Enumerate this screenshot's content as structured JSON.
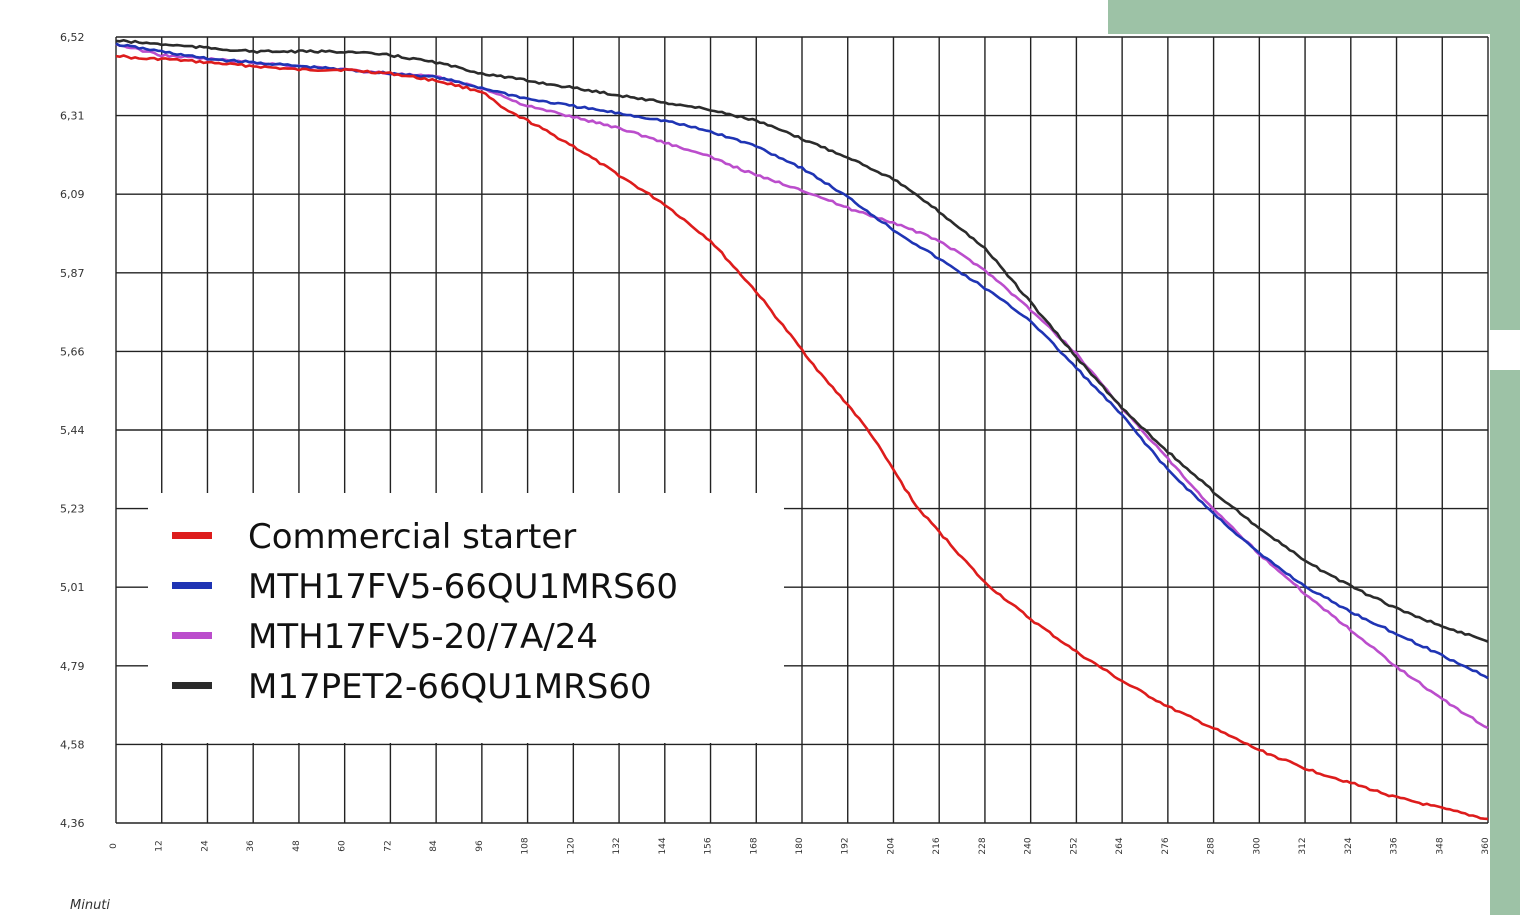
{
  "chart_data": {
    "type": "line",
    "xlabel": "Minuti",
    "ylabel": "",
    "x_ticks": [
      0,
      12,
      24,
      36,
      48,
      60,
      72,
      84,
      96,
      108,
      120,
      132,
      144,
      156,
      168,
      180,
      192,
      204,
      216,
      228,
      240,
      252,
      264,
      276,
      288,
      300,
      312,
      324,
      336,
      348,
      360
    ],
    "y_ticks": [
      "6,52",
      "6,31",
      "6,09",
      "5,87",
      "5,66",
      "5,44",
      "5,23",
      "5,01",
      "4,79",
      "4,58",
      "4,36"
    ],
    "xlim": [
      0,
      360
    ],
    "ylim": [
      4.36,
      6.52
    ],
    "grid": true,
    "legend_position": "lower-left",
    "series": [
      {
        "name": "Commercial starter",
        "color": "#dd1c1c",
        "x": [
          0,
          6,
          12,
          24,
          36,
          48,
          60,
          72,
          84,
          96,
          102,
          108,
          120,
          132,
          144,
          156,
          168,
          174,
          180,
          186,
          192,
          198,
          204,
          210,
          216,
          228,
          240,
          252,
          264,
          276,
          288,
          300,
          312,
          324,
          336,
          348,
          360
        ],
        "values": [
          6.47,
          6.46,
          6.46,
          6.45,
          6.44,
          6.43,
          6.43,
          6.42,
          6.4,
          6.37,
          6.32,
          6.29,
          6.22,
          6.14,
          6.06,
          5.96,
          5.82,
          5.74,
          5.66,
          5.58,
          5.51,
          5.43,
          5.33,
          5.23,
          5.16,
          5.02,
          4.92,
          4.83,
          4.75,
          4.68,
          4.62,
          4.56,
          4.51,
          4.47,
          4.43,
          4.4,
          4.37
        ]
      },
      {
        "name": "MTH17FV5-66QU1MRS60",
        "color": "#1f34b4",
        "x": [
          0,
          12,
          24,
          36,
          48,
          60,
          72,
          84,
          96,
          108,
          120,
          132,
          144,
          156,
          168,
          180,
          192,
          204,
          216,
          228,
          240,
          252,
          264,
          276,
          288,
          300,
          312,
          324,
          336,
          348,
          360
        ],
        "values": [
          6.5,
          6.48,
          6.46,
          6.45,
          6.44,
          6.43,
          6.42,
          6.41,
          6.38,
          6.35,
          6.33,
          6.31,
          6.29,
          6.26,
          6.22,
          6.16,
          6.08,
          5.99,
          5.91,
          5.83,
          5.74,
          5.61,
          5.48,
          5.33,
          5.21,
          5.1,
          5.01,
          4.94,
          4.88,
          4.82,
          4.76
        ]
      },
      {
        "name": "MTH17FV5-20/7A/24",
        "color": "#bb4dcc",
        "x": [
          0,
          12,
          24,
          36,
          48,
          60,
          72,
          84,
          96,
          108,
          120,
          132,
          144,
          156,
          168,
          180,
          192,
          204,
          216,
          228,
          240,
          252,
          264,
          276,
          288,
          300,
          312,
          324,
          336,
          348,
          360
        ],
        "values": [
          6.5,
          6.47,
          6.46,
          6.45,
          6.44,
          6.43,
          6.42,
          6.41,
          6.38,
          6.33,
          6.3,
          6.27,
          6.23,
          6.19,
          6.14,
          6.1,
          6.05,
          6.01,
          5.96,
          5.88,
          5.77,
          5.65,
          5.5,
          5.36,
          5.22,
          5.1,
          4.99,
          4.89,
          4.79,
          4.7,
          4.62
        ]
      },
      {
        "name": "M17PET2-66QU1MRS60",
        "color": "#2b2b2b",
        "x": [
          0,
          12,
          24,
          36,
          48,
          60,
          72,
          84,
          96,
          108,
          120,
          132,
          144,
          156,
          168,
          180,
          192,
          204,
          216,
          228,
          240,
          252,
          264,
          276,
          288,
          300,
          312,
          324,
          336,
          348,
          360
        ],
        "values": [
          6.51,
          6.5,
          6.49,
          6.48,
          6.48,
          6.48,
          6.47,
          6.45,
          6.42,
          6.4,
          6.38,
          6.36,
          6.34,
          6.32,
          6.29,
          6.24,
          6.19,
          6.13,
          6.04,
          5.94,
          5.79,
          5.64,
          5.5,
          5.38,
          5.27,
          5.17,
          5.08,
          5.01,
          4.95,
          4.9,
          4.86
        ]
      }
    ]
  }
}
